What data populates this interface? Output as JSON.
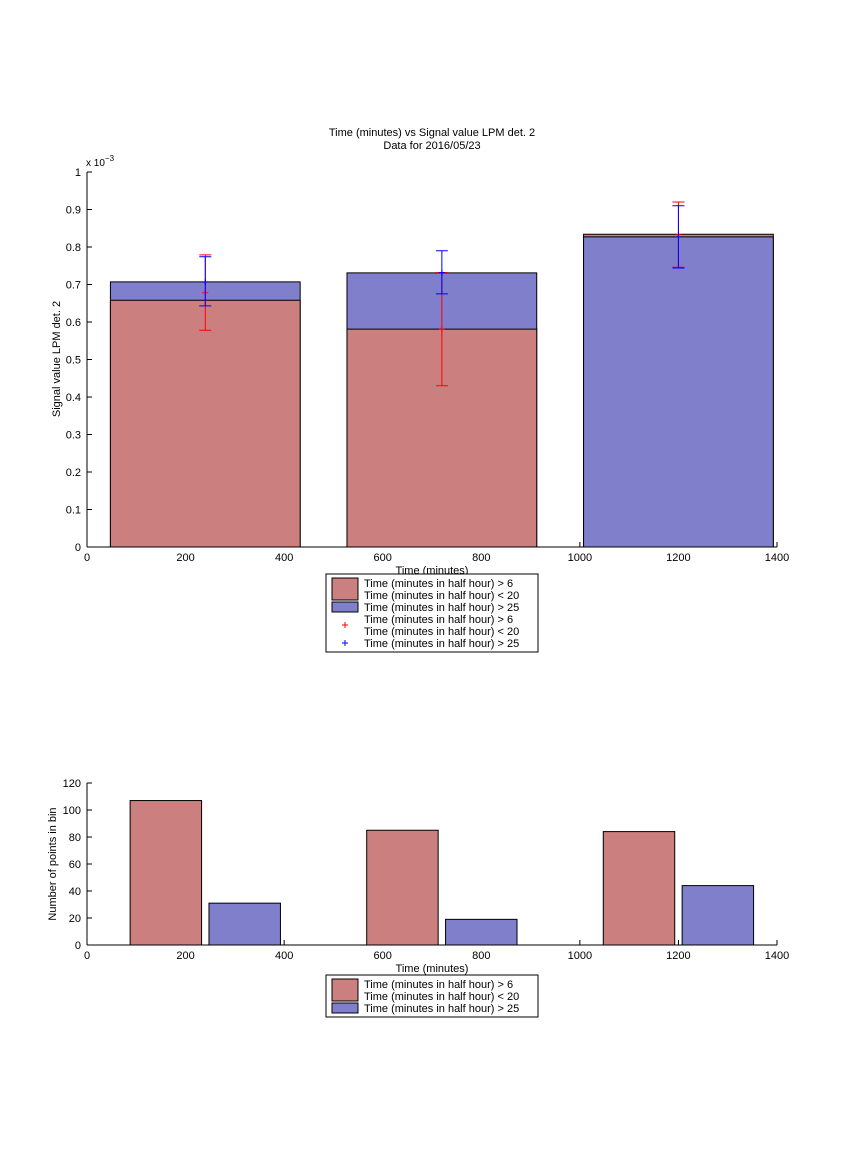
{
  "chart_data": [
    {
      "type": "bar",
      "title": "Time (minutes) vs Signal value LPM det. 2",
      "subtitle": "Data for 2016/05/23",
      "xlabel": "Time (minutes)",
      "ylabel": "Signal value LPM det. 2",
      "exponent_label": "x 10",
      "exponent_power": "−3",
      "xlim": [
        0,
        1400
      ],
      "ylim": [
        0,
        0.001
      ],
      "xticks": [
        0,
        200,
        400,
        600,
        800,
        1000,
        1200,
        1400
      ],
      "yticks": [
        0,
        0.0001,
        0.0002,
        0.0003,
        0.0004,
        0.0005,
        0.0006,
        0.0007,
        0.0008,
        0.0009,
        0.001
      ],
      "ytick_labels": [
        "0",
        "0.1",
        "0.2",
        "0.3",
        "0.4",
        "0.5",
        "0.6",
        "0.7",
        "0.8",
        "0.9",
        "1"
      ],
      "bar_centers": [
        240,
        720,
        1200
      ],
      "bar_width": 385,
      "series": [
        {
          "name": "Time (minutes in half hour) > 6",
          "name2": "Time (minutes in half hour) < 20",
          "color": "#cc7f7f",
          "values": [
            0.000658,
            0.000581,
            0.000834
          ]
        },
        {
          "name": "Time (minutes in half hour) > 25",
          "color": "#7f7fcc",
          "values": [
            0.000707,
            0.000731,
            0.000827
          ]
        }
      ],
      "errorbars": [
        {
          "color": "#ff0000",
          "mean": [
            0.000678,
            0.000581,
            0.000833
          ],
          "lower": [
            0.000578,
            0.00043,
            0.000746
          ],
          "upper": [
            0.000779,
            0.000732,
            0.00092
          ]
        },
        {
          "color": "#0000ff",
          "mean": [
            0.000707,
            0.000732,
            0.000827
          ],
          "lower": [
            0.000643,
            0.000675,
            0.000744
          ],
          "upper": [
            0.000774,
            0.00079,
            0.00091
          ]
        }
      ],
      "legend": {
        "placement": "below",
        "entries": [
          {
            "kind": "patch",
            "color": "#cc7f7f",
            "line1": "Time (minutes in half hour) > 6",
            "line2": "Time (minutes in half hour) < 20"
          },
          {
            "kind": "patch",
            "color": "#7f7fcc",
            "line1": "Time (minutes in half hour) > 25",
            "line2": ""
          },
          {
            "kind": "marker",
            "color": "#ff0000",
            "line1": "Time (minutes in half hour) > 6",
            "line2": "Time (minutes in half hour) < 20"
          },
          {
            "kind": "marker",
            "color": "#0000ff",
            "line1": "Time (minutes in half hour) > 25",
            "line2": ""
          }
        ]
      }
    },
    {
      "type": "bar",
      "title": "",
      "xlabel": "Time (minutes)",
      "ylabel": "Number of points in bin",
      "xlim": [
        0,
        1400
      ],
      "ylim": [
        0,
        120
      ],
      "xticks": [
        0,
        200,
        400,
        600,
        800,
        1000,
        1200,
        1400
      ],
      "yticks": [
        0,
        20,
        40,
        60,
        80,
        100,
        120
      ],
      "bar_width": 145,
      "series": [
        {
          "name": "Time (minutes in half hour) > 6",
          "name2": "Time (minutes in half hour) < 20",
          "color": "#cc7f7f",
          "x": [
            160,
            640,
            1120
          ],
          "values": [
            107,
            85,
            84
          ]
        },
        {
          "name": "Time (minutes in half hour) > 25",
          "color": "#7f7fcc",
          "x": [
            320,
            800,
            1280
          ],
          "values": [
            31,
            19,
            44
          ]
        }
      ],
      "legend": {
        "placement": "below",
        "entries": [
          {
            "kind": "patch",
            "color": "#cc7f7f",
            "line1": "Time (minutes in half hour) > 6",
            "line2": "Time (minutes in half hour) < 20"
          },
          {
            "kind": "patch",
            "color": "#7f7fcc",
            "line1": "Time (minutes in half hour) > 25",
            "line2": ""
          }
        ]
      }
    }
  ]
}
